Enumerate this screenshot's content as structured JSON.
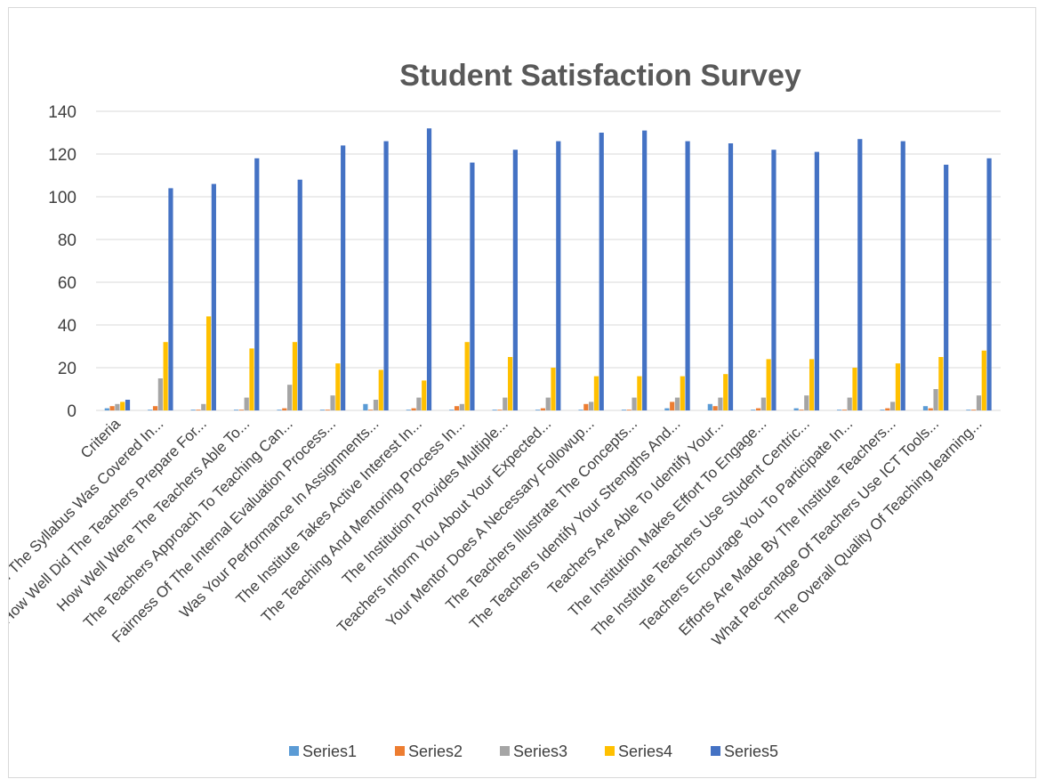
{
  "chart_data": {
    "type": "bar",
    "title": "Student Satisfaction Survey",
    "xlabel": "",
    "ylabel": "",
    "ylim": [
      0,
      140
    ],
    "yticks": [
      0,
      20,
      40,
      60,
      80,
      100,
      120,
      140
    ],
    "grid": true,
    "legend_position": "bottom",
    "categories": [
      "Criteria",
      "How Much Of The Syllabus Was Covered In...",
      "How Well Did The Teachers Prepare For...",
      "How Well Were The Teachers Able To...",
      "The Teachers Approach To Teaching Can...",
      "Fairness Of The Internal Evaluation Process...",
      "Was Your Performance In Assignments...",
      "The Institute Takes Active Interest In...",
      "The Teaching And Mentoring Process In...",
      "The Institution Provides Multiple...",
      "Teachers Inform You About Your Expected...",
      "Your Mentor Does A Necessary Followup...",
      "The Teachers Illustrate The Concepts...",
      "The Teachers Identify Your Strengths And...",
      "Teachers Are Able To Identify Your...",
      "The Institution Makes Effort To Engage...",
      "The Institute Teachers Use Student Centric...",
      "Teachers Encourage You To Participate In...",
      "Efforts Are Made By The Institute Teachers...",
      "What Percentage Of Teachers Use ICT Tools...",
      "The Overall Quality Of Teaching learning..."
    ],
    "series": [
      {
        "name": "Series1",
        "color": "#5b9bd5",
        "values": [
          1,
          0,
          0,
          0,
          0,
          0,
          3,
          0,
          0,
          0,
          0,
          0,
          0,
          1,
          3,
          0,
          1,
          0,
          0,
          2,
          0
        ]
      },
      {
        "name": "Series2",
        "color": "#ed7d31",
        "values": [
          2,
          2,
          0,
          0,
          1,
          0,
          0,
          1,
          2,
          0,
          1,
          3,
          0,
          4,
          2,
          1,
          0,
          0,
          1,
          1,
          0
        ]
      },
      {
        "name": "Series3",
        "color": "#a5a5a5",
        "values": [
          3,
          15,
          3,
          6,
          12,
          7,
          5,
          6,
          3,
          6,
          6,
          4,
          6,
          6,
          6,
          6,
          7,
          6,
          4,
          10,
          7
        ]
      },
      {
        "name": "Series4",
        "color": "#ffc000",
        "values": [
          4,
          32,
          44,
          29,
          32,
          22,
          19,
          14,
          32,
          25,
          20,
          16,
          16,
          16,
          17,
          24,
          24,
          20,
          22,
          25,
          28
        ]
      },
      {
        "name": "Series5",
        "color": "#4472c4",
        "values": [
          5,
          104,
          106,
          118,
          108,
          124,
          126,
          132,
          116,
          122,
          126,
          130,
          131,
          126,
          125,
          122,
          121,
          127,
          126,
          115,
          118
        ]
      }
    ]
  }
}
